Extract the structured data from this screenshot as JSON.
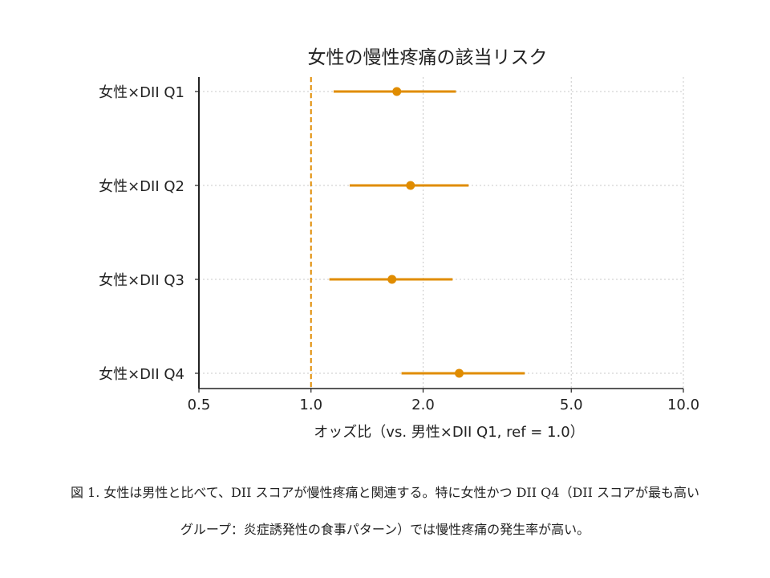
{
  "chart_data": {
    "type": "forest",
    "title": "女性の慢性疼痛の該当リスク",
    "xlabel": "オッズ比（vs. 男性×DII Q1, ref = 1.0）",
    "ylabel": "",
    "x_scale": "log",
    "xlim": [
      0.5,
      10.0
    ],
    "xticks": [
      "0.5",
      "1.0",
      "2.0",
      "5.0",
      "10.0"
    ],
    "reference_line": 1.0,
    "grid": true,
    "color": "#E08C00",
    "categories": [
      "女性×DII Q1",
      "女性×DII Q2",
      "女性×DII Q3",
      "女性×DII Q4"
    ],
    "series": [
      {
        "values": [
          1.7,
          1.85,
          1.65,
          2.5
        ],
        "ci_low": [
          1.15,
          1.27,
          1.12,
          1.75
        ],
        "ci_high": [
          2.45,
          2.65,
          2.4,
          3.75
        ]
      }
    ]
  },
  "caption": {
    "line1": "図 1. 女性は男性と比べて、DII スコアが慢性疼痛と関連する。特に女性かつ DII Q4（DII スコアが最も高い",
    "line2": "グループ：炎症誘発性の食事パターン）では慢性疼痛の発生率が高い。"
  }
}
